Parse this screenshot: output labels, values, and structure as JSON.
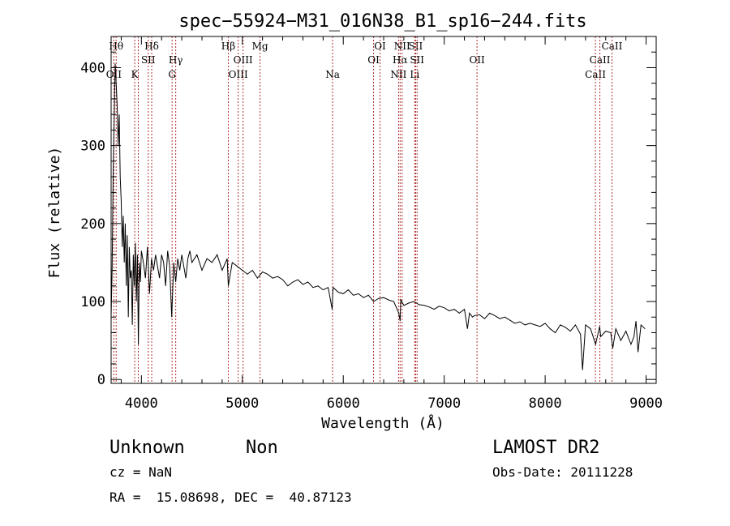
{
  "chart_data": {
    "type": "line",
    "title": "spec−55924−M31_016N38_B1_sp16−244.fits",
    "xlabel": "Wavelength (Å)",
    "ylabel": "Flux (relative)",
    "xlim": [
      3700,
      9100
    ],
    "ylim": [
      -5,
      440
    ],
    "x_ticks": [
      4000,
      5000,
      6000,
      7000,
      8000,
      9000
    ],
    "y_ticks": [
      0,
      100,
      200,
      300,
      400
    ],
    "x_tick_labels": [
      "4000",
      "5000",
      "6000",
      "7000",
      "8000",
      "9000"
    ],
    "y_tick_labels": [
      "0",
      "100",
      "200",
      "300",
      "400"
    ],
    "grid": false,
    "line_color": "#000000",
    "marker_color": "#b03030",
    "series": [
      {
        "x": [
          3700,
          3710,
          3720,
          3730,
          3740,
          3750,
          3760,
          3770,
          3780,
          3790,
          3800,
          3810,
          3820,
          3830,
          3840,
          3850,
          3860,
          3870,
          3880,
          3890,
          3900,
          3910,
          3920,
          3930,
          3940,
          3950,
          3960,
          3970,
          3980,
          3990,
          4000,
          4020,
          4040,
          4060,
          4080,
          4100,
          4120,
          4140,
          4160,
          4180,
          4200,
          4220,
          4240,
          4260,
          4280,
          4300,
          4320,
          4340,
          4360,
          4380,
          4400,
          4420,
          4440,
          4460,
          4480,
          4500,
          4550,
          4600,
          4650,
          4700,
          4750,
          4800,
          4850,
          4861,
          4900,
          4950,
          5000,
          5050,
          5100,
          5150,
          5200,
          5250,
          5300,
          5350,
          5400,
          5450,
          5500,
          5550,
          5600,
          5650,
          5700,
          5750,
          5800,
          5850,
          5890,
          5895,
          5900,
          5950,
          6000,
          6050,
          6100,
          6150,
          6200,
          6250,
          6300,
          6350,
          6400,
          6450,
          6500,
          6550,
          6563,
          6570,
          6600,
          6650,
          6700,
          6750,
          6800,
          6850,
          6900,
          6950,
          7000,
          7050,
          7100,
          7150,
          7200,
          7230,
          7250,
          7280,
          7300,
          7350,
          7400,
          7450,
          7500,
          7550,
          7600,
          7650,
          7700,
          7750,
          7800,
          7850,
          7900,
          7950,
          8000,
          8050,
          8100,
          8150,
          8200,
          8250,
          8300,
          8350,
          8370,
          8400,
          8450,
          8500,
          8540,
          8550,
          8600,
          8650,
          8670,
          8700,
          8750,
          8800,
          8850,
          8880,
          8900,
          8920,
          8950,
          8990
        ],
        "y": [
          80,
          140,
          260,
          330,
          405,
          380,
          350,
          300,
          340,
          260,
          230,
          170,
          210,
          150,
          200,
          120,
          185,
          80,
          170,
          130,
          140,
          70,
          160,
          120,
          175,
          100,
          160,
          45,
          150,
          125,
          165,
          150,
          130,
          170,
          110,
          155,
          140,
          160,
          145,
          130,
          160,
          150,
          120,
          165,
          145,
          80,
          150,
          125,
          155,
          140,
          160,
          145,
          130,
          155,
          165,
          150,
          160,
          140,
          155,
          150,
          160,
          140,
          155,
          120,
          150,
          145,
          140,
          135,
          140,
          130,
          138,
          135,
          130,
          132,
          128,
          120,
          125,
          128,
          122,
          125,
          118,
          120,
          115,
          118,
          90,
          110,
          118,
          112,
          110,
          115,
          108,
          110,
          105,
          108,
          100,
          104,
          105,
          102,
          100,
          85,
          75,
          102,
          95,
          98,
          100,
          96,
          95,
          93,
          90,
          94,
          92,
          88,
          90,
          85,
          90,
          65,
          85,
          80,
          82,
          83,
          78,
          85,
          82,
          78,
          80,
          76,
          72,
          74,
          70,
          72,
          70,
          68,
          72,
          65,
          60,
          70,
          67,
          62,
          70,
          58,
          12,
          70,
          65,
          45,
          68,
          55,
          62,
          60,
          40,
          65,
          50,
          62,
          45,
          55,
          75,
          35,
          70,
          65
        ]
      }
    ],
    "line_markers": [
      {
        "x": 3727,
        "label": "OII",
        "row": 2
      },
      {
        "x": 3750,
        "label": "Hθ",
        "row": 0
      },
      {
        "x": 3934,
        "label": "K",
        "row": 2
      },
      {
        "x": 3969,
        "label": "",
        "row": 2
      },
      {
        "x": 4068,
        "label": "SII",
        "row": 1
      },
      {
        "x": 4102,
        "label": "Hδ",
        "row": 0
      },
      {
        "x": 4304,
        "label": "G",
        "row": 2
      },
      {
        "x": 4340,
        "label": "Hγ",
        "row": 1
      },
      {
        "x": 4861,
        "label": "Hβ",
        "row": 0
      },
      {
        "x": 4959,
        "label": "OIII",
        "row": 2
      },
      {
        "x": 5007,
        "label": "OIII",
        "row": 1
      },
      {
        "x": 5175,
        "label": "Mg",
        "row": 0
      },
      {
        "x": 5894,
        "label": "Na",
        "row": 2
      },
      {
        "x": 6300,
        "label": "OI",
        "row": 1
      },
      {
        "x": 6364,
        "label": "OI",
        "row": 0
      },
      {
        "x": 6548,
        "label": "NII",
        "row": 2
      },
      {
        "x": 6563,
        "label": "Hα",
        "row": 1
      },
      {
        "x": 6583,
        "label": "NII",
        "row": 0
      },
      {
        "x": 6708,
        "label": "Li",
        "row": 2
      },
      {
        "x": 6717,
        "label": "SII",
        "row": 0
      },
      {
        "x": 6731,
        "label": "SII",
        "row": 1
      },
      {
        "x": 7325,
        "label": "OII",
        "row": 1
      },
      {
        "x": 8498,
        "label": "CaII",
        "row": 2
      },
      {
        "x": 8542,
        "label": "CaII",
        "row": 1
      },
      {
        "x": 8662,
        "label": "CaII",
        "row": 0
      }
    ]
  },
  "info": {
    "class": "Unknown",
    "subclass": "Non",
    "cz": "cz = NaN",
    "radec": "RA =  15.08698, DEC =  40.87123",
    "survey": "LAMOST DR2",
    "obsdate": "Obs-Date: 20111228"
  }
}
